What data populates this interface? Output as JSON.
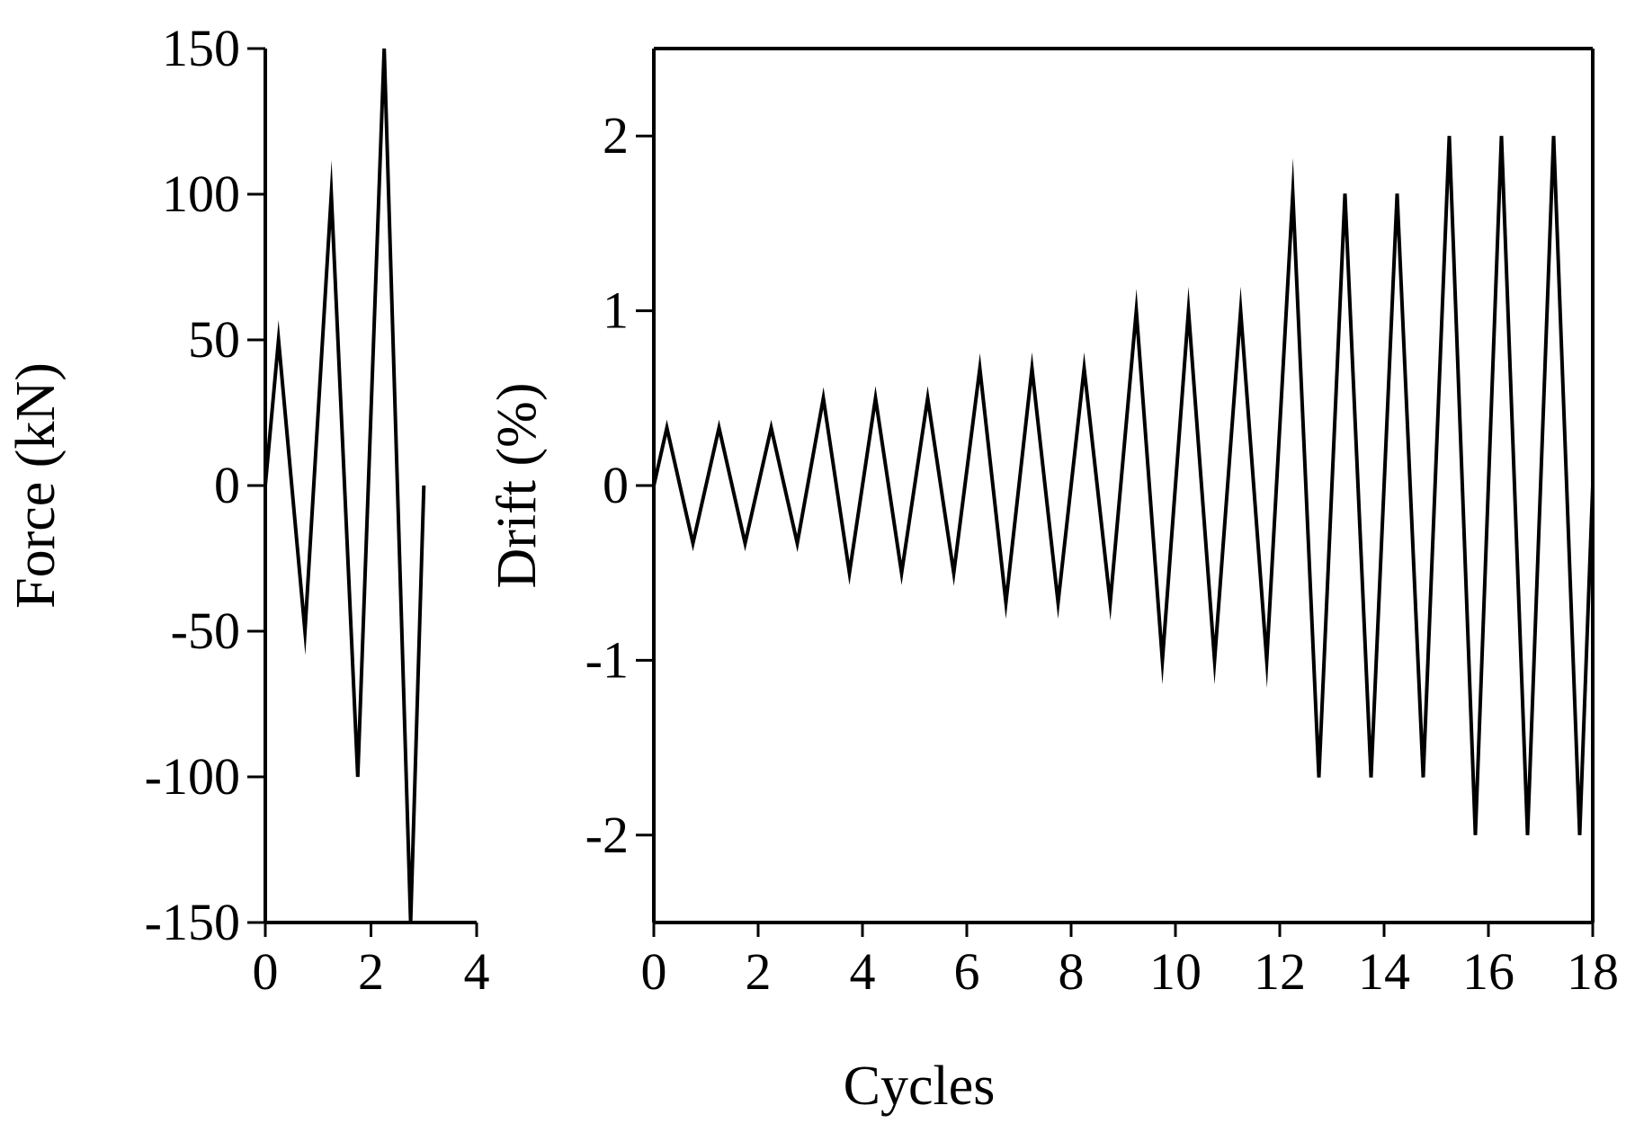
{
  "chart_data": [
    {
      "type": "line",
      "ylabel": "Force (kN)",
      "xlim": [
        0,
        4
      ],
      "ylim": [
        -150,
        150
      ],
      "xticks": [
        "0",
        "2",
        "4"
      ],
      "yticks": [
        "150",
        "100",
        "50",
        "0",
        "-50",
        "-100",
        "-150"
      ],
      "grid": false,
      "series": [
        {
          "x": [
            0,
            0.25,
            0.75,
            1.25,
            1.75,
            2.25,
            2.75,
            3.0
          ],
          "values": [
            0,
            50,
            -50,
            100,
            -100,
            150,
            -150,
            0
          ]
        }
      ]
    },
    {
      "type": "line",
      "ylabel": "Drift (%)",
      "xlim": [
        0,
        18
      ],
      "ylim": [
        -2.5,
        2.5
      ],
      "xticks": [
        "0",
        "2",
        "4",
        "6",
        "8",
        "10",
        "12",
        "14",
        "16",
        "18"
      ],
      "yticks": [
        "2",
        "1",
        "0",
        "-1",
        "-2"
      ],
      "grid": false,
      "series": [
        {
          "x": [
            0,
            0.25,
            0.75,
            1.25,
            1.75,
            2.25,
            2.75,
            3.25,
            3.75,
            4.25,
            4.75,
            5.25,
            5.75,
            6.25,
            6.75,
            7.25,
            7.75,
            8.25,
            8.75,
            9.25,
            9.75,
            10.25,
            10.75,
            11.25,
            11.75,
            12.25,
            12.75,
            13.25,
            13.75,
            14.25,
            14.75,
            15.25,
            15.75,
            16.25,
            16.75,
            17.25,
            17.75,
            18.0
          ],
          "values": [
            0,
            0.33,
            -0.33,
            0.33,
            -0.33,
            0.33,
            -0.33,
            0.5,
            -0.5,
            0.5,
            -0.5,
            0.5,
            -0.5,
            0.67,
            -0.67,
            0.67,
            -0.67,
            0.67,
            -0.67,
            1.0,
            -1.0,
            1.0,
            -1.0,
            1.0,
            -1.0,
            1.67,
            -1.67,
            1.67,
            -1.67,
            1.67,
            -1.67,
            2.0,
            -2.0,
            2.0,
            -2.0,
            2.0,
            -2.0,
            0
          ]
        }
      ]
    }
  ],
  "shared_xlabel": "Cycles"
}
